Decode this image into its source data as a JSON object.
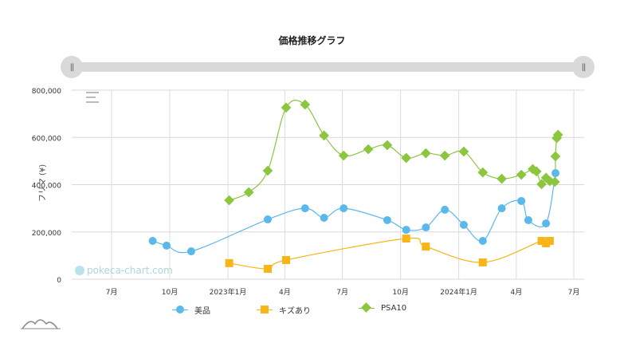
{
  "title": "価格推移グラフ",
  "range_slider": {
    "left_handle": "||",
    "right_handle": "||"
  },
  "watermark": "pokeca-chart.com",
  "chart_data": {
    "type": "line",
    "title": "価格推移グラフ",
    "xlabel": "",
    "ylabel": "フリマ (¥)",
    "ylim": [
      0,
      800000
    ],
    "xlim": [
      "2022-05-01",
      "2024-07-15"
    ],
    "grid": true,
    "legend": "bottom",
    "yticks": [
      0,
      200000,
      400000,
      600000,
      800000
    ],
    "ytick_labels": [
      "0",
      "200,000",
      "400,000",
      "600,000",
      "800,000"
    ],
    "xticks": [
      {
        "date": "2022-07-01",
        "label": "7月"
      },
      {
        "date": "2022-10-01",
        "label": "10月"
      },
      {
        "date": "2023-01-01",
        "label": "2023年1月"
      },
      {
        "date": "2023-04-01",
        "label": "4月"
      },
      {
        "date": "2023-07-01",
        "label": "7月"
      },
      {
        "date": "2023-10-01",
        "label": "10月"
      },
      {
        "date": "2024-01-01",
        "label": "2024年1月"
      },
      {
        "date": "2024-04-01",
        "label": "4月"
      },
      {
        "date": "2024-07-01",
        "label": "7月"
      }
    ],
    "series": [
      {
        "name": "美品",
        "color": "#5bb8ea",
        "marker": "circle",
        "points": [
          [
            "2022-09-04",
            162000
          ],
          [
            "2022-09-26",
            142000
          ],
          [
            "2022-11-04",
            118000
          ],
          [
            "2023-03-05",
            253000
          ],
          [
            "2023-05-03",
            300000
          ],
          [
            "2023-06-02",
            260000
          ],
          [
            "2023-07-03",
            300000
          ],
          [
            "2023-09-10",
            250000
          ],
          [
            "2023-10-10",
            209000
          ],
          [
            "2023-11-10",
            219000
          ],
          [
            "2023-12-10",
            294000
          ],
          [
            "2024-01-09",
            230000
          ],
          [
            "2024-02-08",
            162000
          ],
          [
            "2024-03-09",
            300000
          ],
          [
            "2024-04-09",
            331000
          ],
          [
            "2024-04-20",
            250000
          ],
          [
            "2024-05-18",
            236000
          ],
          [
            "2024-06-02",
            449000
          ]
        ]
      },
      {
        "name": "キズあり",
        "color": "#f7b518",
        "marker": "square",
        "points": [
          [
            "2023-01-03",
            68000
          ],
          [
            "2023-03-05",
            44000
          ],
          [
            "2023-04-03",
            81000
          ],
          [
            "2023-10-10",
            172000
          ],
          [
            "2023-11-10",
            138000
          ],
          [
            "2024-02-08",
            71000
          ],
          [
            "2024-05-11",
            162000
          ],
          [
            "2024-05-18",
            152000
          ],
          [
            "2024-05-24",
            162000
          ]
        ]
      },
      {
        "name": "PSA10",
        "color": "#8cc63f",
        "marker": "diamond",
        "points": [
          [
            "2023-01-03",
            334000
          ],
          [
            "2023-02-03",
            368000
          ],
          [
            "2023-03-05",
            459000
          ],
          [
            "2023-04-03",
            726000
          ],
          [
            "2023-05-03",
            739000
          ],
          [
            "2023-06-02",
            608000
          ],
          [
            "2023-07-03",
            523000
          ],
          [
            "2023-08-11",
            550000
          ],
          [
            "2023-09-10",
            567000
          ],
          [
            "2023-10-10",
            513000
          ],
          [
            "2023-11-10",
            533000
          ],
          [
            "2023-12-10",
            523000
          ],
          [
            "2024-01-09",
            540000
          ],
          [
            "2024-02-08",
            452000
          ],
          [
            "2024-03-09",
            425000
          ],
          [
            "2024-04-09",
            442000
          ],
          [
            "2024-04-27",
            466000
          ],
          [
            "2024-05-03",
            456000
          ],
          [
            "2024-05-11",
            402000
          ],
          [
            "2024-05-18",
            429000
          ],
          [
            "2024-05-24",
            415000
          ],
          [
            "2024-06-01",
            412000
          ],
          [
            "2024-06-02",
            520000
          ],
          [
            "2024-06-04",
            597000
          ],
          [
            "2024-06-06",
            611000
          ]
        ]
      }
    ]
  }
}
